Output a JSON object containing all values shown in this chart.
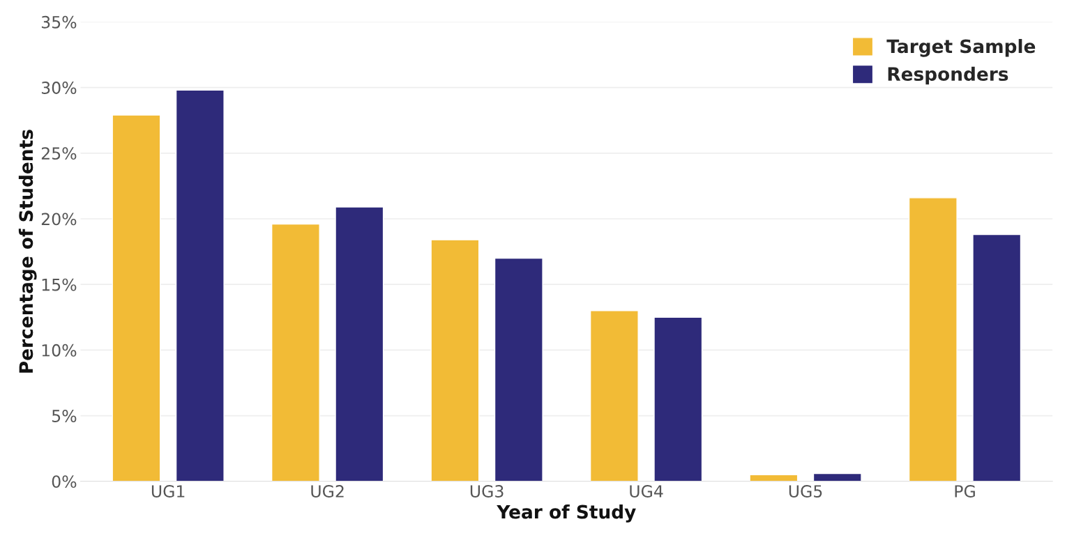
{
  "chart_data": {
    "type": "bar",
    "xlabel": "Year of Study",
    "ylabel": "Percentage of Students",
    "categories": [
      "UG1",
      "UG2",
      "UG3",
      "UG4",
      "UG5",
      "PG"
    ],
    "series": [
      {
        "name": "Target Sample",
        "color": "#f2bb36",
        "values": [
          27.9,
          19.6,
          18.4,
          13.0,
          0.5,
          21.6
        ]
      },
      {
        "name": "Responders",
        "color": "#2e2a7a",
        "values": [
          29.8,
          20.9,
          17.0,
          12.5,
          0.6,
          18.8
        ]
      }
    ],
    "ylim": [
      0,
      35
    ],
    "yticks": [
      {
        "value": 0,
        "label": "0%"
      },
      {
        "value": 5,
        "label": "5%"
      },
      {
        "value": 10,
        "label": "10%"
      },
      {
        "value": 15,
        "label": "15%"
      },
      {
        "value": 20,
        "label": "20%"
      },
      {
        "value": 25,
        "label": "25%"
      },
      {
        "value": 30,
        "label": "30%"
      },
      {
        "value": 35,
        "label": "35%"
      }
    ],
    "grid": "y",
    "legend": "top right"
  }
}
